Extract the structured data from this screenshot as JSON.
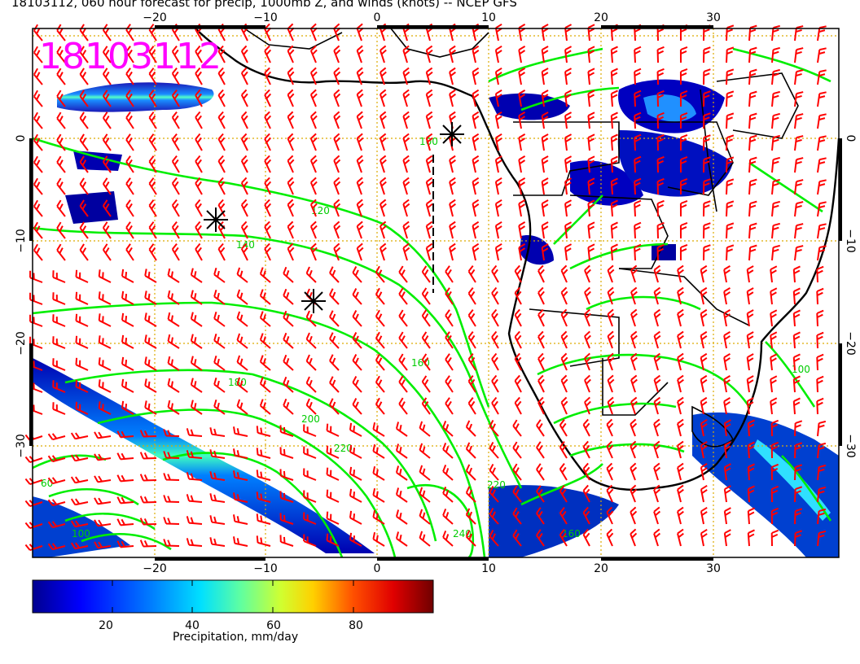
{
  "title": "18103112, 060 hour forecast for precip, 1000mb Z, and winds (knots) -- NCEP GFS",
  "stamp": "18103112",
  "stamp_color": "#ff00ff",
  "axes": {
    "lon_ticks": [
      "−20",
      "−10",
      "0",
      "10",
      "20",
      "30"
    ],
    "lat_ticks": [
      "0",
      "−10",
      "−20",
      "−30"
    ]
  },
  "colors": {
    "contour": "#00ee00",
    "wind_barb": "#ff0000",
    "coast": "#000000",
    "grid": "#ddaa00"
  },
  "contour_labels": [
    "120",
    "140",
    "160",
    "180",
    "200",
    "220",
    "220",
    "240",
    "100",
    "100",
    "100",
    "160",
    "60"
  ],
  "markers": [
    "asterisk-icon",
    "asterisk-icon",
    "asterisk-icon"
  ],
  "colorbar": {
    "ticks": [
      "20",
      "40",
      "60",
      "80"
    ],
    "label": "Precipitation, mm/day",
    "min": 0,
    "max": 100,
    "colors": [
      "#00008f",
      "#0000ff",
      "#0080ff",
      "#00d8ff",
      "#50ffb0",
      "#c0ff40",
      "#ffd000",
      "#ff6000",
      "#e00000",
      "#800000"
    ]
  }
}
